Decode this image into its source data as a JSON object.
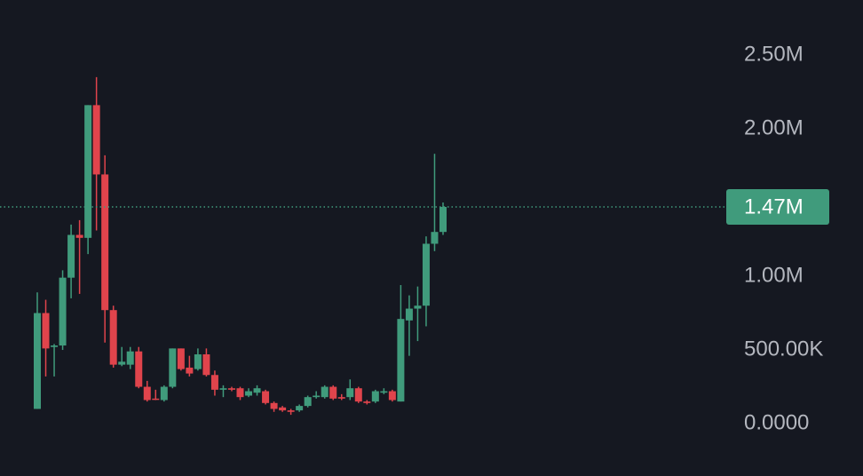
{
  "chart_data": {
    "type": "candlestick",
    "up_color": "#409b7c",
    "down_color": "#e0444c",
    "ylim": [
      -355000,
      2873000
    ],
    "yticks": [
      {
        "value": 0,
        "label": "0.0000"
      },
      {
        "value": 500000,
        "label": "500.00K"
      },
      {
        "value": 1000000,
        "label": "1.00M"
      },
      {
        "value": 2000000,
        "label": "2.00M"
      },
      {
        "value": 2500000,
        "label": "2.50M"
      }
    ],
    "current_price": {
      "value": 1470000,
      "label": "1.47M"
    },
    "open": [
      100000,
      750000,
      520000,
      530000,
      990000,
      1280000,
      1260000,
      2160000,
      1690000,
      770000,
      400000,
      400000,
      490000,
      250000,
      170000,
      160000,
      250000,
      510000,
      380000,
      370000,
      470000,
      330000,
      230000,
      240000,
      240000,
      190000,
      210000,
      220000,
      140000,
      110000,
      90000,
      90000,
      120000,
      180000,
      180000,
      250000,
      180000,
      180000,
      240000,
      150000,
      150000,
      210000,
      220000,
      150000,
      700000,
      780000,
      800000,
      1220000,
      1300000
    ],
    "high": [
      890000,
      840000,
      540000,
      1040000,
      1350000,
      1380000,
      2160000,
      2350000,
      1820000,
      800000,
      520000,
      520000,
      520000,
      290000,
      230000,
      260000,
      510000,
      510000,
      460000,
      510000,
      510000,
      360000,
      260000,
      250000,
      250000,
      240000,
      260000,
      230000,
      150000,
      120000,
      100000,
      130000,
      190000,
      220000,
      260000,
      260000,
      200000,
      300000,
      250000,
      160000,
      230000,
      240000,
      230000,
      940000,
      870000,
      930000,
      1270000,
      1830000,
      1500000
    ],
    "low": [
      100000,
      320000,
      320000,
      500000,
      850000,
      880000,
      1150000,
      1310000,
      550000,
      380000,
      390000,
      370000,
      240000,
      150000,
      160000,
      150000,
      240000,
      360000,
      320000,
      360000,
      320000,
      190000,
      180000,
      220000,
      160000,
      180000,
      190000,
      130000,
      80000,
      80000,
      60000,
      80000,
      110000,
      170000,
      170000,
      160000,
      160000,
      160000,
      140000,
      130000,
      140000,
      200000,
      150000,
      150000,
      460000,
      560000,
      660000,
      1170000,
      1280000
    ],
    "close": [
      750000,
      510000,
      530000,
      990000,
      1280000,
      1260000,
      2160000,
      1690000,
      770000,
      400000,
      420000,
      490000,
      250000,
      160000,
      165000,
      250000,
      510000,
      370000,
      340000,
      470000,
      330000,
      230000,
      240000,
      230000,
      180000,
      220000,
      240000,
      140000,
      100000,
      90000,
      80000,
      120000,
      180000,
      190000,
      250000,
      170000,
      170000,
      240000,
      150000,
      140000,
      220000,
      220000,
      160000,
      710000,
      780000,
      800000,
      1220000,
      1300000,
      1470000
    ]
  }
}
